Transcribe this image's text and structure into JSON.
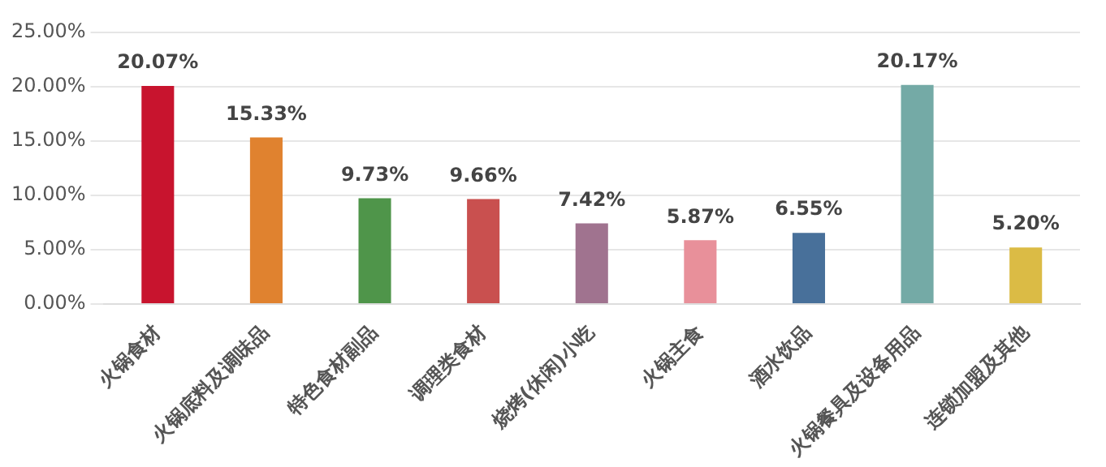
{
  "chart_data": {
    "type": "bar",
    "categories": [
      "火锅食材",
      "火锅底料及调味品",
      "特色食材副品",
      "调理类食材",
      "烧烤(休闲)小吃",
      "火锅主食",
      "酒水饮品",
      "火锅餐具及设备用品",
      "连锁加盟及其他"
    ],
    "values": [
      20.07,
      15.33,
      9.73,
      9.66,
      7.42,
      5.87,
      6.55,
      20.17,
      5.2
    ],
    "colors": [
      "#c8142e",
      "#e0822f",
      "#4f954a",
      "#c9504f",
      "#a0738f",
      "#e8909a",
      "#48709a",
      "#74aaa6",
      "#dbbb45"
    ],
    "value_labels": [
      "20.07%",
      "15.33%",
      "9.73%",
      "9.66%",
      "7.42%",
      "5.87%",
      "6.55%",
      "20.17%",
      "5.20%"
    ],
    "ylim": [
      0,
      25
    ],
    "yticks": [
      {
        "value": 0,
        "label": "0.00%"
      },
      {
        "value": 5,
        "label": "5.00%"
      },
      {
        "value": 10,
        "label": "10.00%"
      },
      {
        "value": 15,
        "label": "15.00%"
      },
      {
        "value": 20,
        "label": "20.00%"
      },
      {
        "value": 25,
        "label": "25.00%"
      }
    ],
    "grid": "y",
    "legend": false
  }
}
